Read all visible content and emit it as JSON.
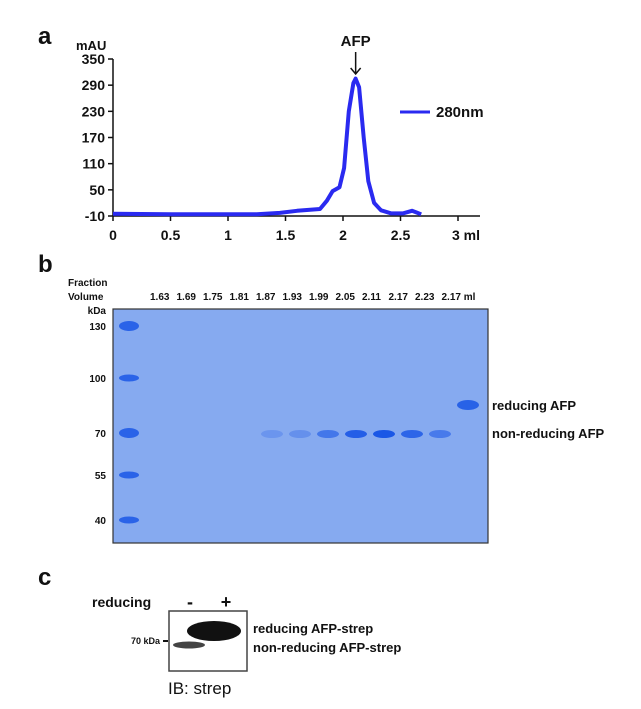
{
  "panels": {
    "a": "a",
    "b": "b",
    "c": "c"
  },
  "chart_data": {
    "type": "line",
    "title": "",
    "xlabel": "ml",
    "ylabel": "mAU",
    "xlim": [
      0,
      3
    ],
    "ylim": [
      -10,
      350
    ],
    "xticks": [
      "0",
      "0.5",
      "1",
      "1.5",
      "2",
      "2.5",
      "3 ml"
    ],
    "xtick_values": [
      0,
      0.5,
      1,
      1.5,
      2,
      2.5,
      3
    ],
    "yticks": [
      "350",
      "290",
      "230",
      "170",
      "110",
      "50",
      "-10"
    ],
    "ytick_values": [
      350,
      290,
      230,
      170,
      110,
      50,
      -10
    ],
    "grid": false,
    "legend_position": "right",
    "annotation": {
      "text": "AFP",
      "x": 2.11
    },
    "series": [
      {
        "name": "280nm",
        "color": "#2a2af0",
        "x": [
          0,
          0.5,
          1,
          1.25,
          1.45,
          1.6,
          1.7,
          1.8,
          1.86,
          1.91,
          1.97,
          2.01,
          2.05,
          2.09,
          2.11,
          2.14,
          2.18,
          2.22,
          2.27,
          2.33,
          2.42,
          2.52,
          2.6,
          2.64,
          2.68
        ],
        "y": [
          -5,
          -6,
          -6,
          -6,
          -3,
          2,
          4,
          6,
          25,
          47,
          56,
          100,
          230,
          295,
          305,
          285,
          170,
          70,
          20,
          3,
          -4,
          -4,
          2,
          -2,
          -6
        ]
      }
    ]
  },
  "gel": {
    "header_line1": "Fraction",
    "header_line2": "Volume",
    "kda_label": "kDa",
    "fractions": [
      "1.63",
      "1.69",
      "1.75",
      "1.81",
      "1.87",
      "1.93",
      "1.99",
      "2.05",
      "2.11",
      "2.17",
      "2.23",
      "2.17 ml"
    ],
    "markers": [
      "130",
      "100",
      "70",
      "55",
      "40"
    ],
    "band_intensity": [
      0,
      0,
      0,
      0,
      0.12,
      0.18,
      0.55,
      0.9,
      1.0,
      0.8,
      0.5,
      0.85
    ],
    "last_lane_reducing": true,
    "gel_color": "#86aaf0",
    "band_color": "#1a57e6",
    "labels": {
      "reducing": "reducing AFP",
      "non_reducing": "non-reducing AFP"
    }
  },
  "blot": {
    "row_label": "reducing",
    "lanes": [
      "-",
      "+"
    ],
    "marker": "70 kDa",
    "labels": {
      "reducing": "reducing AFP-strep",
      "non_reducing": "non-reducing AFP-strep"
    },
    "ib": "IB:  strep"
  }
}
